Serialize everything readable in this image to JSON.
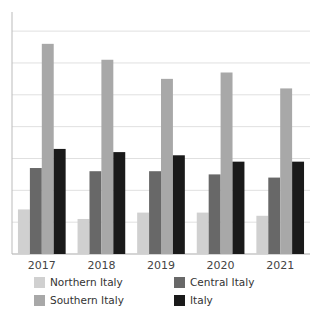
{
  "chart_data": {
    "type": "bar",
    "categories": [
      "2017",
      "2018",
      "2019",
      "2020",
      "2021"
    ],
    "series": [
      {
        "name": "Northern Italy",
        "color": "#d0d0d0",
        "values": [
          7.0,
          5.5,
          6.5,
          6.5,
          6.0
        ]
      },
      {
        "name": "Central Italy",
        "color": "#686868",
        "values": [
          13.5,
          13.0,
          13.0,
          12.5,
          12.0
        ]
      },
      {
        "name": "Southern Italy",
        "color": "#a8a8a8",
        "values": [
          33.0,
          30.5,
          27.5,
          28.5,
          26.0
        ]
      },
      {
        "name": "Italy",
        "color": "#1a1a1a",
        "values": [
          16.5,
          16.0,
          15.5,
          14.5,
          14.5
        ]
      }
    ],
    "ylim": [
      0,
      38
    ],
    "yticks": [
      0,
      5,
      10,
      15,
      20,
      25,
      30,
      35
    ],
    "grid": true,
    "legend": "bottom",
    "tick_labels": "x"
  }
}
